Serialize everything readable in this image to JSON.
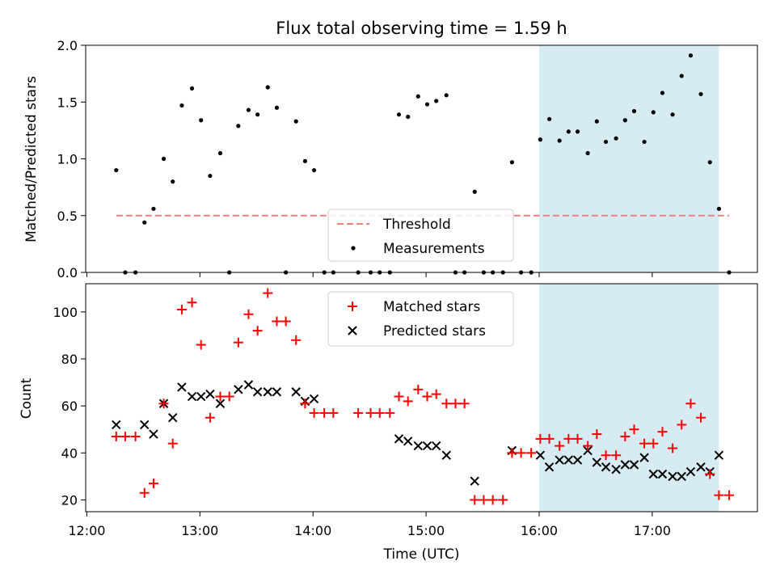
{
  "title": "Flux total observing time = 1.59 h",
  "colors": {
    "threshold": "#f08080",
    "measurement": "#000000",
    "matched": "#ff0000",
    "predicted": "#000000",
    "shade": "#add8e6"
  },
  "x_axis": {
    "label": "Time (UTC)",
    "ticks": [
      {
        "value": 12,
        "label": "12:00"
      },
      {
        "value": 13,
        "label": "13:00"
      },
      {
        "value": 14,
        "label": "14:00"
      },
      {
        "value": 15,
        "label": "15:00"
      },
      {
        "value": 16,
        "label": "16:00"
      },
      {
        "value": 17,
        "label": "17:00"
      }
    ]
  },
  "chart_data": [
    {
      "type": "scatter",
      "ylabel": "Matched/Predicted stars",
      "xlim": [
        11.99,
        17.93
      ],
      "ylim": [
        0,
        2.0
      ],
      "yticks": [
        {
          "value": 0,
          "label": "0.0"
        },
        {
          "value": 0.5,
          "label": "0.5"
        },
        {
          "value": 1.0,
          "label": "1.0"
        },
        {
          "value": 1.5,
          "label": "1.5"
        },
        {
          "value": 2.0,
          "label": "2.0"
        }
      ],
      "shaded_region": [
        16.0,
        17.59
      ],
      "threshold": {
        "name": "Threshold",
        "value": 0.5,
        "x_range": [
          12.26,
          17.68
        ]
      },
      "legend": {
        "location": "lower center",
        "entries": [
          "Threshold",
          "Measurements"
        ]
      },
      "series": [
        {
          "name": "Measurements",
          "points": [
            [
              12.26,
              0.9
            ],
            [
              12.34,
              0.0
            ],
            [
              12.43,
              0.0
            ],
            [
              12.51,
              0.44
            ],
            [
              12.59,
              0.56
            ],
            [
              12.68,
              1.0
            ],
            [
              12.76,
              0.8
            ],
            [
              12.84,
              1.47
            ],
            [
              12.93,
              1.62
            ],
            [
              13.01,
              1.34
            ],
            [
              13.09,
              0.85
            ],
            [
              13.18,
              1.05
            ],
            [
              13.26,
              0.0
            ],
            [
              13.34,
              1.29
            ],
            [
              13.43,
              1.43
            ],
            [
              13.51,
              1.39
            ],
            [
              13.6,
              1.63
            ],
            [
              13.68,
              1.45
            ],
            [
              13.76,
              0.0
            ],
            [
              13.85,
              1.33
            ],
            [
              13.93,
              0.98
            ],
            [
              14.01,
              0.9
            ],
            [
              14.1,
              0.0
            ],
            [
              14.18,
              0.0
            ],
            [
              14.4,
              0.0
            ],
            [
              14.51,
              0.0
            ],
            [
              14.59,
              0.0
            ],
            [
              14.68,
              0.0
            ],
            [
              14.76,
              1.39
            ],
            [
              14.84,
              1.37
            ],
            [
              14.93,
              1.55
            ],
            [
              15.01,
              1.48
            ],
            [
              15.09,
              1.51
            ],
            [
              15.18,
              1.56
            ],
            [
              15.26,
              0.0
            ],
            [
              15.34,
              0.0
            ],
            [
              15.43,
              0.71
            ],
            [
              15.51,
              0.0
            ],
            [
              15.59,
              0.0
            ],
            [
              15.68,
              0.0
            ],
            [
              15.76,
              0.97
            ],
            [
              15.84,
              0.0
            ],
            [
              15.93,
              0.0
            ],
            [
              16.01,
              1.17
            ],
            [
              16.09,
              1.35
            ],
            [
              16.18,
              1.16
            ],
            [
              16.26,
              1.24
            ],
            [
              16.34,
              1.24
            ],
            [
              16.43,
              1.05
            ],
            [
              16.51,
              1.33
            ],
            [
              16.59,
              1.15
            ],
            [
              16.68,
              1.18
            ],
            [
              16.76,
              1.34
            ],
            [
              16.84,
              1.42
            ],
            [
              16.93,
              1.15
            ],
            [
              17.01,
              1.41
            ],
            [
              17.09,
              1.58
            ],
            [
              17.18,
              1.39
            ],
            [
              17.26,
              1.73
            ],
            [
              17.34,
              1.91
            ],
            [
              17.43,
              1.57
            ],
            [
              17.51,
              0.97
            ],
            [
              17.59,
              0.56
            ],
            [
              17.68,
              0.0
            ]
          ]
        }
      ]
    },
    {
      "type": "scatter",
      "ylabel": "Count",
      "xlim": [
        11.99,
        17.93
      ],
      "ylim": [
        15,
        112
      ],
      "yticks": [
        {
          "value": 20,
          "label": "20"
        },
        {
          "value": 40,
          "label": "40"
        },
        {
          "value": 60,
          "label": "60"
        },
        {
          "value": 80,
          "label": "80"
        },
        {
          "value": 100,
          "label": "100"
        }
      ],
      "shaded_region": [
        16.0,
        17.59
      ],
      "legend": {
        "location": "upper center",
        "entries": [
          "Matched stars",
          "Predicted stars"
        ]
      },
      "series": [
        {
          "name": "Matched stars",
          "points": [
            [
              12.26,
              47
            ],
            [
              12.34,
              47
            ],
            [
              12.43,
              47
            ],
            [
              12.51,
              23
            ],
            [
              12.59,
              27
            ],
            [
              12.68,
              61
            ],
            [
              12.76,
              44
            ],
            [
              12.84,
              101
            ],
            [
              12.93,
              104
            ],
            [
              13.01,
              86
            ],
            [
              13.09,
              55
            ],
            [
              13.18,
              64
            ],
            [
              13.26,
              64
            ],
            [
              13.34,
              87
            ],
            [
              13.43,
              99
            ],
            [
              13.51,
              92
            ],
            [
              13.6,
              108
            ],
            [
              13.68,
              96
            ],
            [
              13.76,
              96
            ],
            [
              13.85,
              88
            ],
            [
              13.93,
              61
            ],
            [
              14.01,
              57
            ],
            [
              14.1,
              57
            ],
            [
              14.18,
              57
            ],
            [
              14.4,
              57
            ],
            [
              14.51,
              57
            ],
            [
              14.59,
              57
            ],
            [
              14.68,
              57
            ],
            [
              14.76,
              64
            ],
            [
              14.84,
              62
            ],
            [
              14.93,
              67
            ],
            [
              15.01,
              64
            ],
            [
              15.09,
              65
            ],
            [
              15.18,
              61
            ],
            [
              15.26,
              61
            ],
            [
              15.34,
              61
            ],
            [
              15.43,
              20
            ],
            [
              15.51,
              20
            ],
            [
              15.59,
              20
            ],
            [
              15.68,
              20
            ],
            [
              15.76,
              40
            ],
            [
              15.84,
              40
            ],
            [
              15.93,
              40
            ],
            [
              16.01,
              46
            ],
            [
              16.09,
              46
            ],
            [
              16.18,
              43
            ],
            [
              16.26,
              46
            ],
            [
              16.34,
              46
            ],
            [
              16.43,
              43
            ],
            [
              16.51,
              48
            ],
            [
              16.59,
              39
            ],
            [
              16.68,
              39
            ],
            [
              16.76,
              47
            ],
            [
              16.84,
              50
            ],
            [
              16.93,
              44
            ],
            [
              17.01,
              44
            ],
            [
              17.09,
              49
            ],
            [
              17.18,
              42
            ],
            [
              17.26,
              52
            ],
            [
              17.34,
              61
            ],
            [
              17.43,
              55
            ],
            [
              17.51,
              31
            ],
            [
              17.59,
              22
            ],
            [
              17.68,
              22
            ]
          ]
        },
        {
          "name": "Predicted stars",
          "points": [
            [
              12.26,
              52
            ],
            [
              12.51,
              52
            ],
            [
              12.59,
              48
            ],
            [
              12.68,
              61
            ],
            [
              12.76,
              55
            ],
            [
              12.84,
              68
            ],
            [
              12.93,
              64
            ],
            [
              13.01,
              64
            ],
            [
              13.09,
              65
            ],
            [
              13.18,
              61
            ],
            [
              13.34,
              67
            ],
            [
              13.43,
              69
            ],
            [
              13.51,
              66
            ],
            [
              13.6,
              66
            ],
            [
              13.68,
              66
            ],
            [
              13.85,
              66
            ],
            [
              13.93,
              62
            ],
            [
              14.01,
              63
            ],
            [
              14.76,
              46
            ],
            [
              14.84,
              45
            ],
            [
              14.93,
              43
            ],
            [
              15.01,
              43
            ],
            [
              15.09,
              43
            ],
            [
              15.18,
              39
            ],
            [
              15.43,
              28
            ],
            [
              15.76,
              41
            ],
            [
              16.01,
              39
            ],
            [
              16.09,
              34
            ],
            [
              16.18,
              37
            ],
            [
              16.26,
              37
            ],
            [
              16.34,
              37
            ],
            [
              16.43,
              41
            ],
            [
              16.51,
              36
            ],
            [
              16.59,
              34
            ],
            [
              16.68,
              33
            ],
            [
              16.76,
              35
            ],
            [
              16.84,
              35
            ],
            [
              16.93,
              38
            ],
            [
              17.01,
              31
            ],
            [
              17.09,
              31
            ],
            [
              17.18,
              30
            ],
            [
              17.26,
              30
            ],
            [
              17.34,
              32
            ],
            [
              17.43,
              34
            ],
            [
              17.51,
              32
            ],
            [
              17.59,
              39
            ]
          ]
        }
      ]
    }
  ]
}
